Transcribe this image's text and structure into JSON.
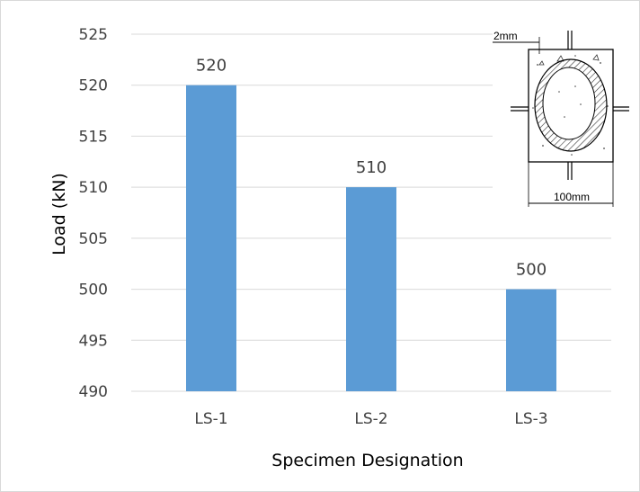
{
  "chart_data": {
    "type": "bar",
    "categories": [
      "LS-1",
      "LS-2",
      "LS-3"
    ],
    "values": [
      520,
      510,
      500
    ],
    "data_labels": [
      "520",
      "510",
      "500"
    ],
    "xlabel": "Specimen Designation",
    "ylabel": "Load (kN)",
    "ylim": [
      490,
      525
    ],
    "yticks": [
      490,
      495,
      500,
      505,
      510,
      515,
      520,
      525
    ],
    "grid": "horizontal",
    "bar_color": "#5B9BD5",
    "gridline_color": "#d9d9d9",
    "legend": "none"
  },
  "inset": {
    "thickness_label": "2mm",
    "width_label": "100mm"
  }
}
